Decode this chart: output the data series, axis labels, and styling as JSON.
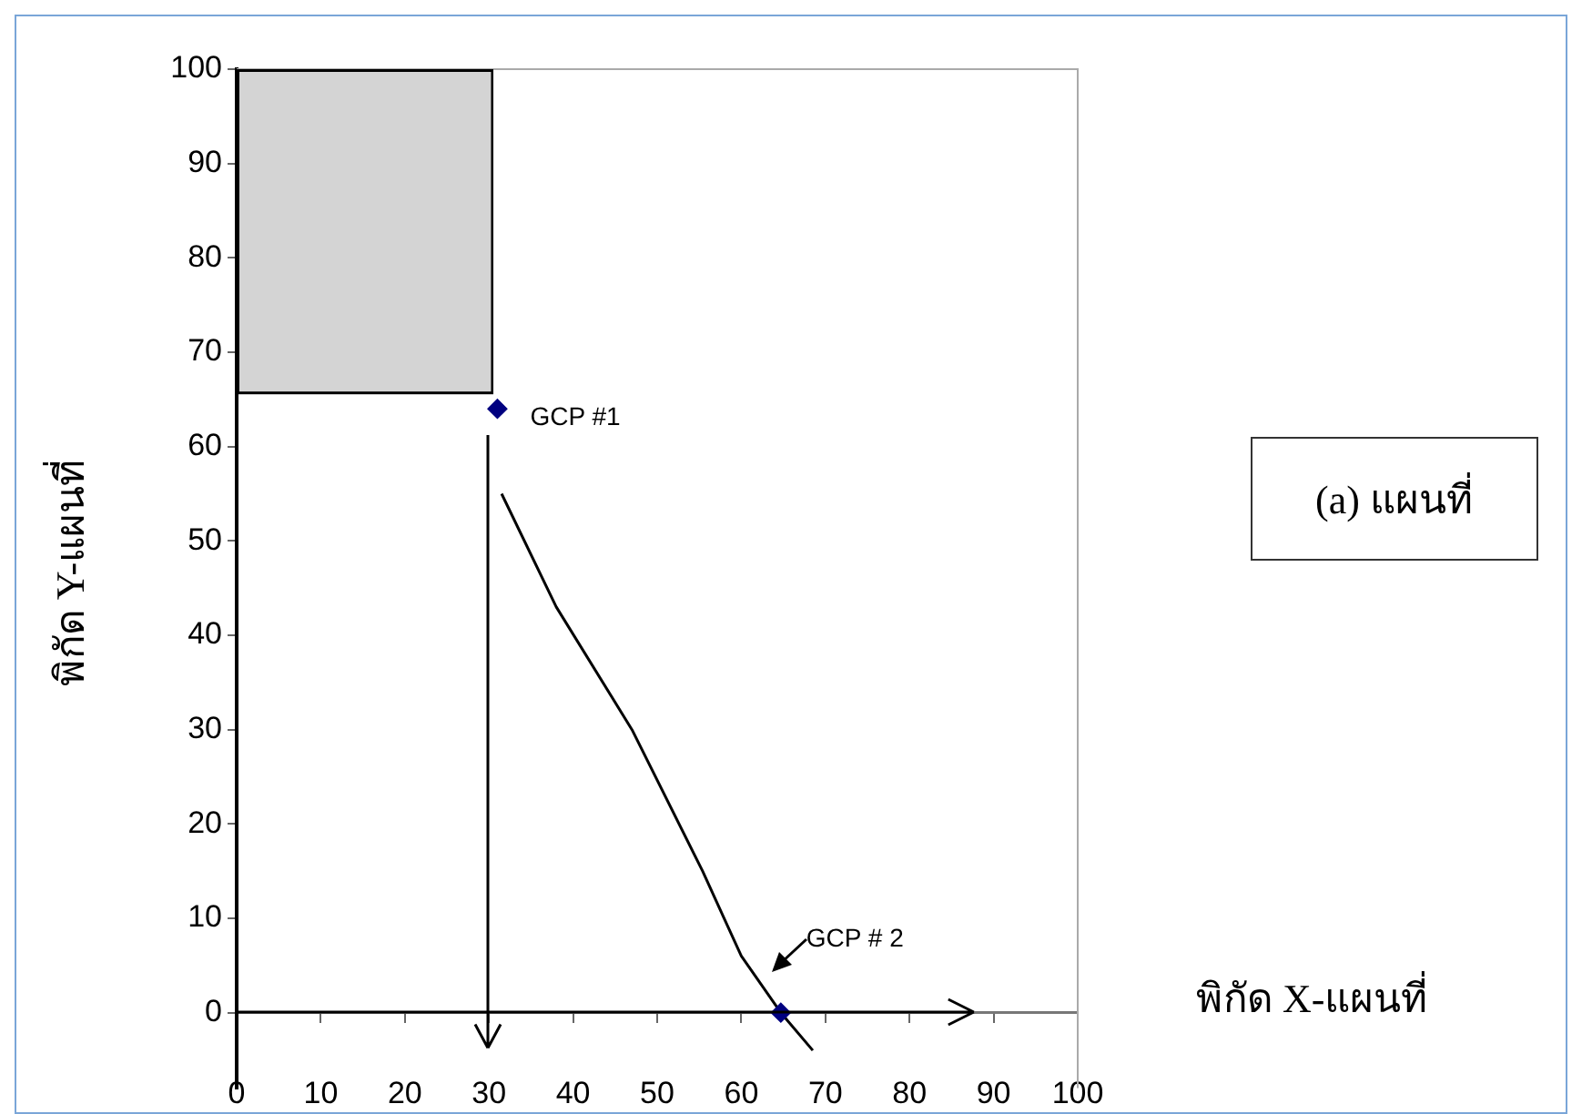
{
  "chart_data": {
    "type": "scatter",
    "xlabel": "พิกัด X-แผนที่",
    "ylabel": "พิกัด Y-แผนที่",
    "xlim": [
      0,
      100
    ],
    "xticks": [
      0,
      10,
      20,
      30,
      40,
      50,
      60,
      70,
      80,
      90,
      100
    ],
    "ylim": [
      -8,
      100
    ],
    "yticks": [
      0,
      10,
      20,
      30,
      40,
      50,
      60,
      70,
      80,
      90,
      100
    ],
    "grid": false,
    "legend": false,
    "series": [
      {
        "color": "#000080",
        "marker": "diamond",
        "x": [
          31,
          64.7
        ],
        "values": [
          64,
          0
        ]
      },
      {
        "type": "line",
        "color": "#000000",
        "x": [
          31.5,
          38,
          47,
          55.4,
          60,
          64.7,
          68.5
        ],
        "values": [
          55,
          43,
          30,
          15,
          6,
          0,
          -4
        ]
      }
    ],
    "annotations": [
      {
        "text": "GCP #1",
        "x": 31,
        "y": 64
      },
      {
        "text": "GCP # 2",
        "x": 64.7,
        "y": 0
      },
      "(a) แผนที่"
    ]
  }
}
